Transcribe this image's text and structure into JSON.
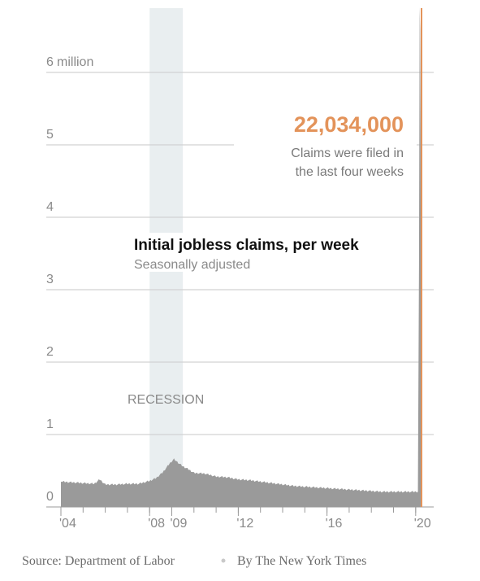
{
  "chart_data": {
    "type": "area",
    "title": "Initial jobless claims, per week",
    "subtitle": "Seasonally adjusted",
    "y_unit_label": "million",
    "y_ticks": [
      0,
      1,
      2,
      3,
      4,
      5,
      6
    ],
    "y_tick_labels": [
      "0",
      "1",
      "2",
      "3",
      "4",
      "5",
      "6"
    ],
    "ylim": [
      0,
      6.6
    ],
    "x_tick_labels": [
      "'04",
      "'08",
      "'09",
      "'12",
      "'16",
      "'20"
    ],
    "x_tick_years": [
      2004,
      2008,
      2009,
      2012,
      2016,
      2020
    ],
    "xlim": [
      2004,
      2020.3
    ],
    "grid": true,
    "recession": {
      "label": "RECESSION",
      "start": 2008.0,
      "end": 2009.5
    },
    "series": [
      {
        "values_years": [
          2004.0,
          2004.5,
          2005.0,
          2005.5,
          2005.75,
          2006.0,
          2006.5,
          2007.0,
          2007.5,
          2008.0,
          2008.3,
          2008.6,
          2008.9,
          2009.1,
          2009.25,
          2009.5,
          2009.75,
          2010.0,
          2010.5,
          2011.0,
          2011.5,
          2012.0,
          2012.5,
          2013.0,
          2013.5,
          2014.0,
          2014.5,
          2015.0,
          2015.5,
          2016.0,
          2016.5,
          2017.0,
          2017.5,
          2018.0,
          2018.5,
          2019.0,
          2019.5,
          2020.0,
          2020.1,
          2020.15,
          2020.18,
          2020.2,
          2020.22,
          2020.25
        ],
        "values": [
          0.35,
          0.34,
          0.33,
          0.32,
          0.38,
          0.31,
          0.31,
          0.32,
          0.32,
          0.36,
          0.4,
          0.48,
          0.6,
          0.66,
          0.62,
          0.56,
          0.52,
          0.47,
          0.46,
          0.42,
          0.41,
          0.38,
          0.37,
          0.35,
          0.33,
          0.31,
          0.29,
          0.28,
          0.27,
          0.26,
          0.25,
          0.24,
          0.23,
          0.22,
          0.21,
          0.21,
          0.21,
          0.21,
          0.21,
          3.3,
          6.9,
          6.6,
          5.2,
          0.21
        ]
      }
    ],
    "annotation": {
      "value": "22,034,000",
      "text_lines": [
        "Claims were filed in",
        "the last four weeks"
      ]
    },
    "source": "Source: Department of Labor",
    "credit": "By The New York Times",
    "colors": {
      "area": "#9a9a9a",
      "accent": "#e3935a",
      "recession": "#e9eef0",
      "grid": "#d2d2d2"
    }
  }
}
